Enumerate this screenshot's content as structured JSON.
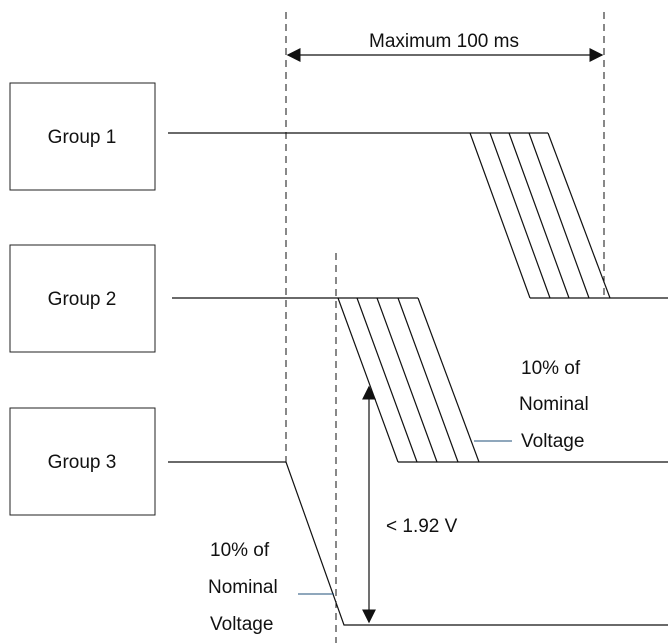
{
  "duration": {
    "label": "Maximum  100 ms"
  },
  "groups": [
    {
      "label": "Group 1"
    },
    {
      "label": "Group 2"
    },
    {
      "label": "Group 3"
    }
  ],
  "annotations": {
    "right_note": [
      "10% of",
      "Nominal",
      "Voltage"
    ],
    "left_note": [
      "10% of",
      "Nominal",
      "Voltage"
    ],
    "voltage_drop": "< 1.92 V"
  }
}
